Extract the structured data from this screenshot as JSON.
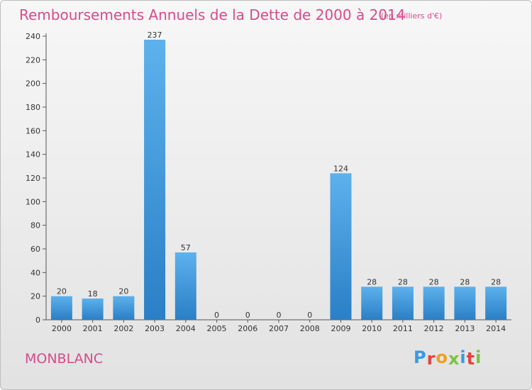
{
  "header": {
    "title": "Remboursements Annuels de la Dette de 2000 à 2014",
    "subtitle": "(en milliers d'€)"
  },
  "footer": {
    "town": "MONBLANC",
    "logo_letters": [
      "P",
      "r",
      "o",
      "x",
      "i",
      "t",
      "i"
    ],
    "logo_colors": [
      "#3a9be0",
      "#e8423f",
      "#f0a020",
      "#7dc240",
      "#3a9be0",
      "#e8423f",
      "#7dc240"
    ]
  },
  "chart_data": {
    "type": "bar",
    "title": "Remboursements Annuels de la Dette de 2000 à 2014",
    "subtitle": "(en milliers d'€)",
    "categories": [
      "2000",
      "2001",
      "2002",
      "2003",
      "2004",
      "2005",
      "2006",
      "2007",
      "2008",
      "2009",
      "2010",
      "2011",
      "2012",
      "2013",
      "2014"
    ],
    "values": [
      20,
      18,
      20,
      237,
      57,
      0,
      0,
      0,
      0,
      124,
      28,
      28,
      28,
      28,
      28
    ],
    "value_labels": [
      "20",
      "18",
      "20",
      "237",
      "57",
      "0",
      "0",
      "0",
      "0",
      "124",
      "28",
      "28",
      "28",
      "28",
      "28"
    ],
    "yticks": [
      0,
      20,
      40,
      60,
      80,
      100,
      120,
      140,
      160,
      180,
      200,
      220,
      240
    ],
    "ytick_labels": [
      "0",
      "20",
      "40",
      "60",
      "80",
      "100",
      "120",
      "140",
      "160",
      "180",
      "200",
      "220",
      "240"
    ],
    "ylim": [
      0,
      240
    ],
    "xlabel": "",
    "ylabel": "",
    "grid": false,
    "bar_color": "#3a97da"
  }
}
